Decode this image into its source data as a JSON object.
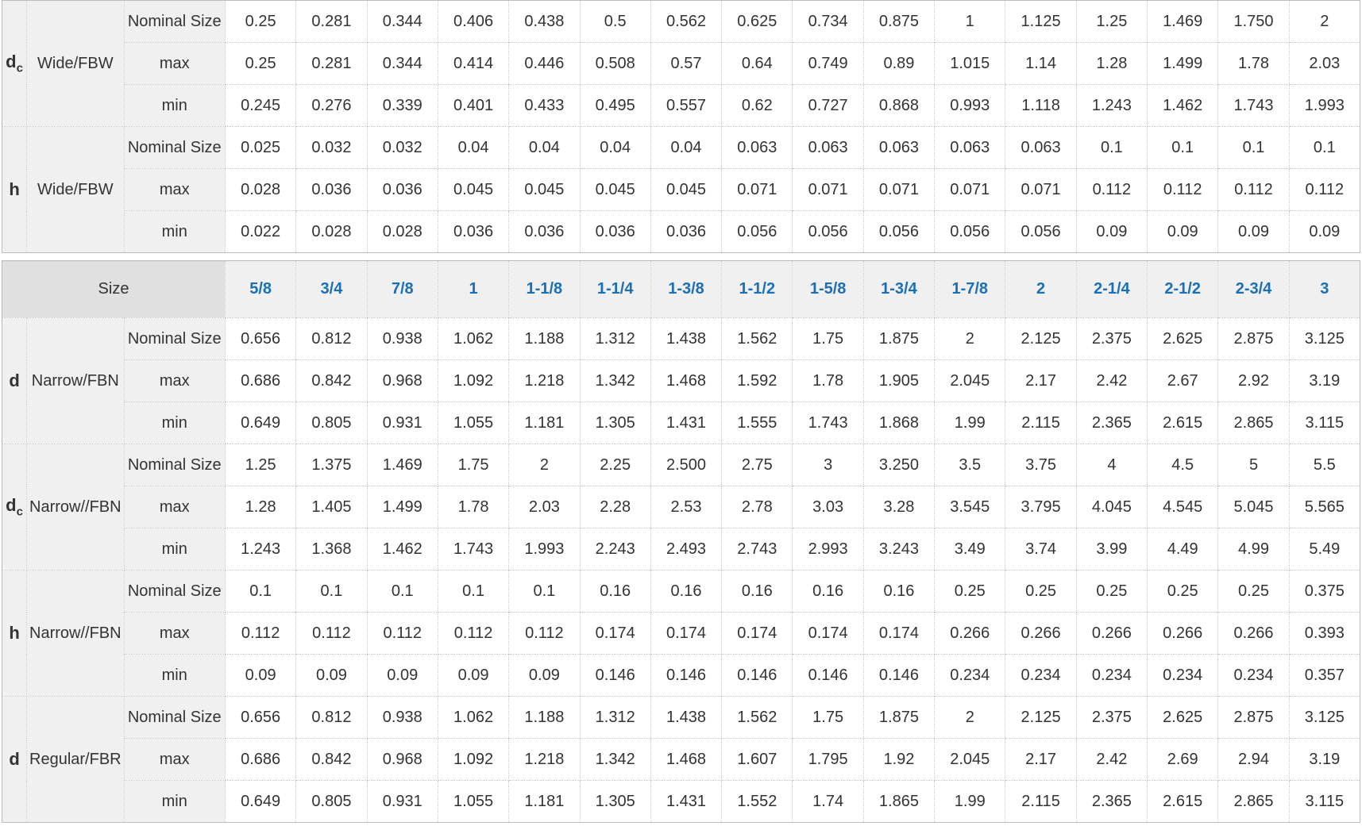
{
  "colors": {
    "size_link": "#1a6fb5",
    "label_bg": "#f0f0f0",
    "header_bg": "#e0e0e0"
  },
  "table1": {
    "groups": [
      {
        "symbol": "d",
        "sub": "c",
        "type": "Wide/FBW",
        "rows": [
          {
            "label": "Nominal Size",
            "values": [
              "0.25",
              "0.281",
              "0.344",
              "0.406",
              "0.438",
              "0.5",
              "0.562",
              "0.625",
              "0.734",
              "0.875",
              "1",
              "1.125",
              "1.25",
              "1.469",
              "1.750",
              "2"
            ]
          },
          {
            "label": "max",
            "values": [
              "0.25",
              "0.281",
              "0.344",
              "0.414",
              "0.446",
              "0.508",
              "0.57",
              "0.64",
              "0.749",
              "0.89",
              "1.015",
              "1.14",
              "1.28",
              "1.499",
              "1.78",
              "2.03"
            ]
          },
          {
            "label": "min",
            "values": [
              "0.245",
              "0.276",
              "0.339",
              "0.401",
              "0.433",
              "0.495",
              "0.557",
              "0.62",
              "0.727",
              "0.868",
              "0.993",
              "1.118",
              "1.243",
              "1.462",
              "1.743",
              "1.993"
            ]
          }
        ]
      },
      {
        "symbol": "h",
        "sub": "",
        "type": "Wide/FBW",
        "rows": [
          {
            "label": "Nominal Size",
            "values": [
              "0.025",
              "0.032",
              "0.032",
              "0.04",
              "0.04",
              "0.04",
              "0.04",
              "0.063",
              "0.063",
              "0.063",
              "0.063",
              "0.063",
              "0.1",
              "0.1",
              "0.1",
              "0.1"
            ]
          },
          {
            "label": "max",
            "values": [
              "0.028",
              "0.036",
              "0.036",
              "0.045",
              "0.045",
              "0.045",
              "0.045",
              "0.071",
              "0.071",
              "0.071",
              "0.071",
              "0.071",
              "0.112",
              "0.112",
              "0.112",
              "0.112"
            ]
          },
          {
            "label": "min",
            "values": [
              "0.022",
              "0.028",
              "0.028",
              "0.036",
              "0.036",
              "0.036",
              "0.036",
              "0.056",
              "0.056",
              "0.056",
              "0.056",
              "0.056",
              "0.09",
              "0.09",
              "0.09",
              "0.09"
            ]
          }
        ]
      }
    ]
  },
  "table2": {
    "size_label": "Size",
    "sizes": [
      "5/8",
      "3/4",
      "7/8",
      "1",
      "1-1/8",
      "1-1/4",
      "1-3/8",
      "1-1/2",
      "1-5/8",
      "1-3/4",
      "1-7/8",
      "2",
      "2-1/4",
      "2-1/2",
      "2-3/4",
      "3"
    ],
    "groups": [
      {
        "symbol": "d",
        "sub": "",
        "type": "Narrow/FBN",
        "rows": [
          {
            "label": "Nominal Size",
            "values": [
              "0.656",
              "0.812",
              "0.938",
              "1.062",
              "1.188",
              "1.312",
              "1.438",
              "1.562",
              "1.75",
              "1.875",
              "2",
              "2.125",
              "2.375",
              "2.625",
              "2.875",
              "3.125"
            ]
          },
          {
            "label": "max",
            "values": [
              "0.686",
              "0.842",
              "0.968",
              "1.092",
              "1.218",
              "1.342",
              "1.468",
              "1.592",
              "1.78",
              "1.905",
              "2.045",
              "2.17",
              "2.42",
              "2.67",
              "2.92",
              "3.19"
            ]
          },
          {
            "label": "min",
            "values": [
              "0.649",
              "0.805",
              "0.931",
              "1.055",
              "1.181",
              "1.305",
              "1.431",
              "1.555",
              "1.743",
              "1.868",
              "1.99",
              "2.115",
              "2.365",
              "2.615",
              "2.865",
              "3.115"
            ]
          }
        ]
      },
      {
        "symbol": "d",
        "sub": "c",
        "type": "Narrow//FBN",
        "rows": [
          {
            "label": "Nominal Size",
            "values": [
              "1.25",
              "1.375",
              "1.469",
              "1.75",
              "2",
              "2.25",
              "2.500",
              "2.75",
              "3",
              "3.250",
              "3.5",
              "3.75",
              "4",
              "4.5",
              "5",
              "5.5"
            ]
          },
          {
            "label": "max",
            "values": [
              "1.28",
              "1.405",
              "1.499",
              "1.78",
              "2.03",
              "2.28",
              "2.53",
              "2.78",
              "3.03",
              "3.28",
              "3.545",
              "3.795",
              "4.045",
              "4.545",
              "5.045",
              "5.565"
            ]
          },
          {
            "label": "min",
            "values": [
              "1.243",
              "1.368",
              "1.462",
              "1.743",
              "1.993",
              "2.243",
              "2.493",
              "2.743",
              "2.993",
              "3.243",
              "3.49",
              "3.74",
              "3.99",
              "4.49",
              "4.99",
              "5.49"
            ]
          }
        ]
      },
      {
        "symbol": "h",
        "sub": "",
        "type": "Narrow//FBN",
        "rows": [
          {
            "label": "Nominal Size",
            "values": [
              "0.1",
              "0.1",
              "0.1",
              "0.1",
              "0.1",
              "0.16",
              "0.16",
              "0.16",
              "0.16",
              "0.16",
              "0.25",
              "0.25",
              "0.25",
              "0.25",
              "0.25",
              "0.375"
            ]
          },
          {
            "label": "max",
            "values": [
              "0.112",
              "0.112",
              "0.112",
              "0.112",
              "0.112",
              "0.174",
              "0.174",
              "0.174",
              "0.174",
              "0.174",
              "0.266",
              "0.266",
              "0.266",
              "0.266",
              "0.266",
              "0.393"
            ]
          },
          {
            "label": "min",
            "values": [
              "0.09",
              "0.09",
              "0.09",
              "0.09",
              "0.09",
              "0.146",
              "0.146",
              "0.146",
              "0.146",
              "0.146",
              "0.234",
              "0.234",
              "0.234",
              "0.234",
              "0.234",
              "0.357"
            ]
          }
        ]
      },
      {
        "symbol": "d",
        "sub": "",
        "type": "Regular/FBR",
        "rows": [
          {
            "label": "Nominal Size",
            "values": [
              "0.656",
              "0.812",
              "0.938",
              "1.062",
              "1.188",
              "1.312",
              "1.438",
              "1.562",
              "1.75",
              "1.875",
              "2",
              "2.125",
              "2.375",
              "2.625",
              "2.875",
              "3.125"
            ]
          },
          {
            "label": "max",
            "values": [
              "0.686",
              "0.842",
              "0.968",
              "1.092",
              "1.218",
              "1.342",
              "1.468",
              "1.607",
              "1.795",
              "1.92",
              "2.045",
              "2.17",
              "2.42",
              "2.69",
              "2.94",
              "3.19"
            ]
          },
          {
            "label": "min",
            "values": [
              "0.649",
              "0.805",
              "0.931",
              "1.055",
              "1.181",
              "1.305",
              "1.431",
              "1.552",
              "1.74",
              "1.865",
              "1.99",
              "2.115",
              "2.365",
              "2.615",
              "2.865",
              "3.115"
            ]
          }
        ]
      }
    ]
  }
}
